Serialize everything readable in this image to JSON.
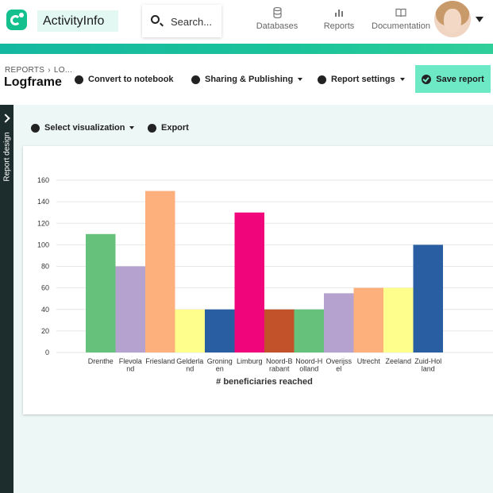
{
  "header": {
    "brand": "ActivityInfo",
    "search_placeholder": "Search...",
    "nav": [
      {
        "label": "Databases",
        "icon": "database-icon"
      },
      {
        "label": "Reports",
        "icon": "bar-chart-icon"
      },
      {
        "label": "Documentation",
        "icon": "book-icon"
      }
    ]
  },
  "report": {
    "breadcrumb_root": "REPORTS",
    "breadcrumb_current": "LO...",
    "title": "Logframe",
    "convert_label": "Convert to notebook",
    "sharing_label": "Sharing & Publishing",
    "settings_label": "Report settings",
    "save_label": "Save report"
  },
  "sidebar": {
    "label": "Report design"
  },
  "visualization": {
    "select_label": "Select visualization",
    "export_label": "Export"
  },
  "colors": {
    "accent": "#13c08e",
    "save_button": "#6ee9c6"
  },
  "chart_data": {
    "type": "bar",
    "title": "",
    "xlabel": "# beneficiaries reached",
    "ylabel": "",
    "ylim": [
      0,
      160
    ],
    "yticks": [
      0,
      20,
      40,
      60,
      80,
      100,
      120,
      140,
      160
    ],
    "grid": true,
    "categories": [
      [
        "Drenthe"
      ],
      [
        "Flevola",
        "nd"
      ],
      [
        "Friesland"
      ],
      [
        "Gelderla",
        "nd"
      ],
      [
        "Groning",
        "en"
      ],
      [
        "Limburg"
      ],
      [
        "Noord-B",
        "rabant"
      ],
      [
        "Noord-H",
        "olland"
      ],
      [
        "Overijss",
        "el"
      ],
      [
        "Utrecht"
      ],
      [
        "Zeeland"
      ],
      [
        "Zuid-Hol",
        "land"
      ]
    ],
    "values": [
      110,
      80,
      150,
      40,
      40,
      130,
      40,
      40,
      55,
      60,
      60,
      100
    ],
    "colors": [
      "#66c27a",
      "#b5a2cf",
      "#fdb07c",
      "#fdfe8c",
      "#2a5ea3",
      "#f0057a",
      "#c1522a",
      "#66c27a",
      "#b5a2cf",
      "#fdb07c",
      "#fdfe8c",
      "#2a5ea3"
    ]
  }
}
